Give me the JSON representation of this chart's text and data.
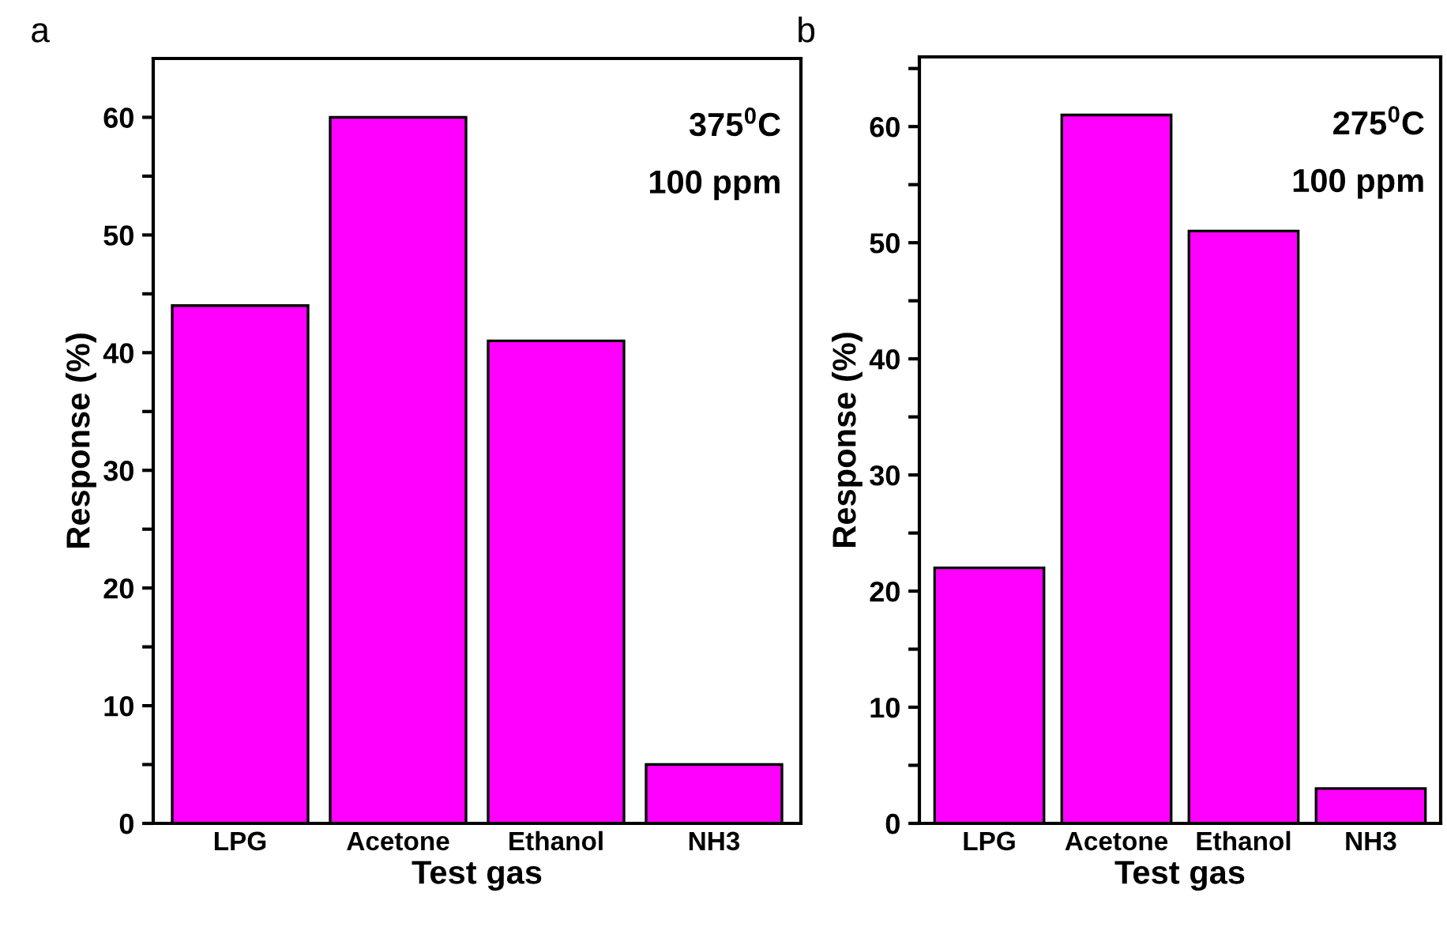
{
  "chart_data": [
    {
      "type": "bar",
      "xlabel": "Test gas",
      "ylabel": "Response (%)",
      "categories": [
        "LPG",
        "Acetone",
        "Ethanol",
        "NH3"
      ],
      "values": [
        44,
        60,
        41,
        5
      ],
      "color": "#ff00ff",
      "ylim": [
        0,
        65
      ],
      "yticks": [
        0,
        {
          "value": 5,
          "label": null
        },
        10,
        {
          "value": 15,
          "label": null
        },
        20,
        {
          "value": 25,
          "label": null
        },
        30,
        {
          "value": 35,
          "label": null
        },
        40,
        {
          "value": 45,
          "label": null
        },
        50,
        {
          "value": 55,
          "label": null
        },
        60
      ],
      "grid": false,
      "annotations": [
        "a",
        "375$^{0}$C",
        "100 ppm"
      ]
    },
    {
      "type": "bar",
      "xlabel": "Test gas",
      "ylabel": "Response (%)",
      "categories": [
        "LPG",
        "Acetone",
        "Ethanol",
        "NH3"
      ],
      "values": [
        22,
        61,
        51,
        3
      ],
      "color": "#ff00ff",
      "ylim": [
        0,
        66
      ],
      "yticks": [
        0,
        {
          "value": 5,
          "label": null
        },
        10,
        {
          "value": 15,
          "label": null
        },
        20,
        {
          "value": 25,
          "label": null
        },
        30,
        {
          "value": 35,
          "label": null
        },
        40,
        {
          "value": 45,
          "label": null
        },
        50,
        {
          "value": 55,
          "label": null
        },
        60,
        {
          "value": 65,
          "label": null
        }
      ],
      "grid": false,
      "annotations": [
        "b",
        "275$^{0}$C",
        "100 ppm"
      ]
    }
  ]
}
